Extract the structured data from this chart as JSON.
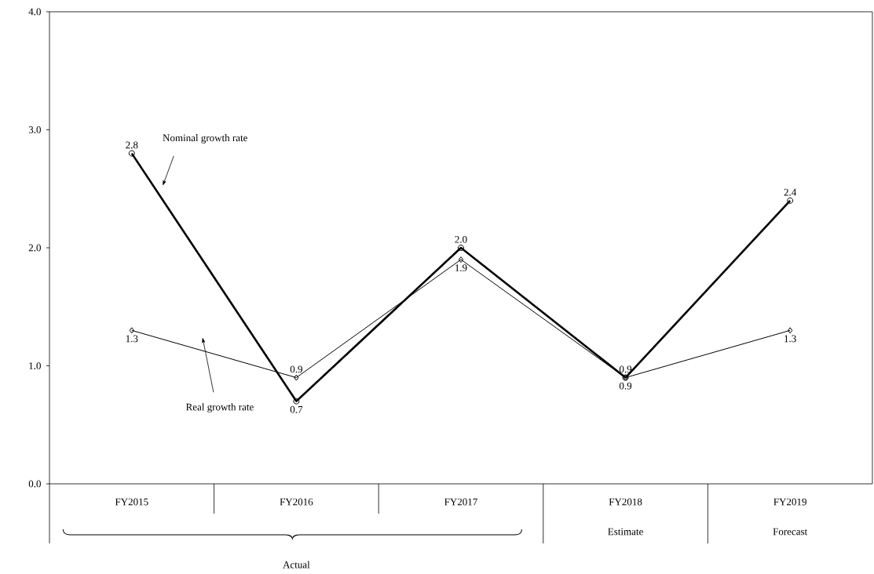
{
  "chart_data": {
    "type": "line",
    "categories": [
      "FY2015",
      "FY2016",
      "FY2017",
      "FY2018",
      "FY2019"
    ],
    "ylim": [
      0,
      4
    ],
    "yticks": [
      {
        "value": 0,
        "label": "0.0"
      },
      {
        "value": 1,
        "label": "1.0"
      },
      {
        "value": 2,
        "label": "2.0"
      },
      {
        "value": 3,
        "label": "3.0"
      },
      {
        "value": 4,
        "label": "4.0"
      }
    ],
    "series": [
      {
        "name": "Nominal growth rate",
        "color": "#000000",
        "marker": "circle",
        "values": [
          2.8,
          0.7,
          2.0,
          0.9,
          2.4
        ],
        "value_labels": [
          "2.8",
          "0.7",
          "2.0",
          "0.9",
          "2.4"
        ]
      },
      {
        "name": "Real growth rate",
        "color": "#000000",
        "marker": "diamond",
        "values": [
          1.3,
          0.9,
          1.9,
          0.9,
          1.3
        ],
        "value_labels": [
          "1.3",
          "0.9",
          "1.9",
          "0.9",
          "1.3"
        ]
      }
    ],
    "annotations": [
      "Estimate",
      "Forecast",
      "Actual"
    ]
  }
}
